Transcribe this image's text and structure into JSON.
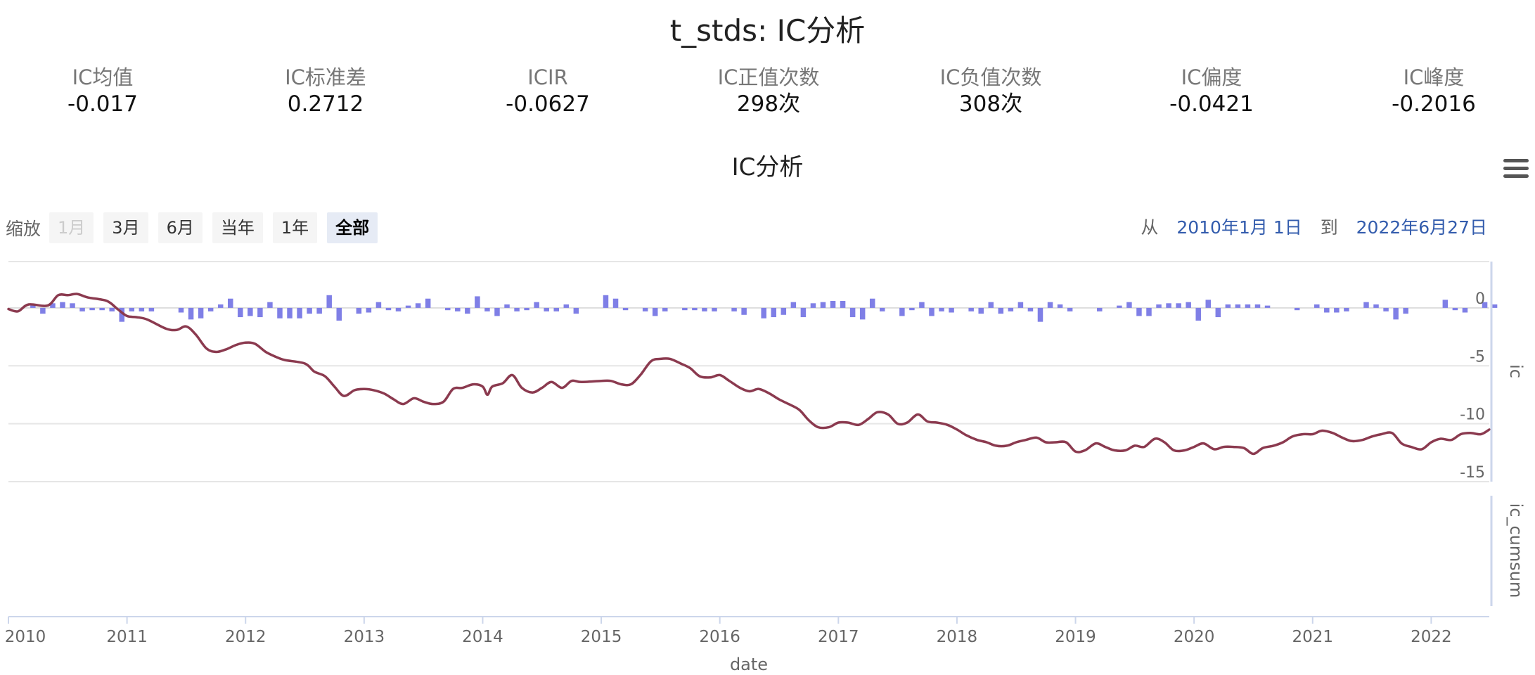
{
  "page_title": "t_stds: IC分析",
  "stats": [
    {
      "label": "IC均值",
      "value": "-0.017"
    },
    {
      "label": "IC标准差",
      "value": "0.2712"
    },
    {
      "label": "ICIR",
      "value": "-0.0627"
    },
    {
      "label": "IC正值次数",
      "value": "298次"
    },
    {
      "label": "IC负值次数",
      "value": "308次"
    },
    {
      "label": "IC偏度",
      "value": "-0.0421"
    },
    {
      "label": "IC峰度",
      "value": "-0.2016"
    }
  ],
  "range_selector": {
    "zoom_label": "缩放",
    "buttons": [
      {
        "label": "1月",
        "state": "disabled"
      },
      {
        "label": "3月",
        "state": "normal"
      },
      {
        "label": "6月",
        "state": "normal"
      },
      {
        "label": "当年",
        "state": "normal"
      },
      {
        "label": "1年",
        "state": "normal"
      },
      {
        "label": "全部",
        "state": "active"
      }
    ],
    "from_label": "从",
    "from_date": "2010年1月 1日",
    "to_label": "到",
    "to_date": "2022年6月27日"
  },
  "chart_data": {
    "type": "line",
    "title": "IC分析",
    "xlabel": "date",
    "x_ticks": [
      "2010",
      "2011",
      "2012",
      "2013",
      "2014",
      "2015",
      "2016",
      "2017",
      "2018",
      "2019",
      "2020",
      "2021",
      "2022"
    ],
    "xlim": [
      2010.0,
      2022.49
    ],
    "axes": [
      {
        "label": "ic",
        "ylim": [
          -15,
          4
        ],
        "ticks": [
          "0",
          "-5",
          "-10",
          "-15"
        ]
      },
      {
        "label": "ic_cumsum",
        "ticks": []
      }
    ],
    "grid": true,
    "colors": {
      "ic_bar": "#7f7fe6",
      "ic_cumsum_line": "#8b3a4f",
      "grid": "#e6e6e6",
      "axis": "#ccd6eb"
    },
    "series": [
      {
        "name": "ic",
        "type": "bar",
        "x_start": 2010.04,
        "x_step": 0.0833,
        "values": [
          0.0,
          0.0,
          0.3,
          -0.5,
          0.4,
          0.5,
          0.4,
          -0.3,
          -0.2,
          -0.2,
          -0.3,
          -1.2,
          -0.3,
          -0.3,
          -0.3,
          0.0,
          0.0,
          -0.4,
          -1.0,
          -0.9,
          -0.3,
          0.3,
          0.8,
          -0.8,
          -0.7,
          -0.8,
          0.5,
          -0.9,
          -0.9,
          -0.9,
          -0.5,
          -0.5,
          1.1,
          -1.1,
          0.0,
          -0.5,
          -0.4,
          0.5,
          -0.2,
          -0.3,
          0.2,
          0.4,
          0.8,
          0.0,
          -0.2,
          -0.3,
          -0.5,
          1.0,
          -0.3,
          -0.7,
          0.3,
          -0.3,
          -0.2,
          0.5,
          -0.3,
          -0.3,
          0.3,
          -0.5,
          0.0,
          0.0,
          1.1,
          0.8,
          -0.2,
          0.0,
          -0.3,
          -0.7,
          -0.3,
          0.0,
          -0.2,
          -0.2,
          -0.3,
          -0.3,
          0.0,
          -0.3,
          -0.6,
          0.0,
          -0.9,
          -0.8,
          -0.6,
          0.5,
          -0.8,
          0.4,
          0.5,
          0.6,
          0.6,
          -0.8,
          -1.0,
          0.8,
          -0.3,
          0.0,
          -0.7,
          -0.2,
          0.5,
          -0.7,
          -0.3,
          -0.4,
          0.0,
          -0.3,
          -0.5,
          0.5,
          -0.5,
          -0.3,
          0.5,
          -0.3,
          -1.2,
          0.5,
          0.3,
          -0.3,
          0.0,
          0.0,
          -0.3,
          0.0,
          0.2,
          0.5,
          -0.7,
          -0.7,
          0.3,
          0.4,
          0.4,
          0.5,
          -1.1,
          0.7,
          -0.8,
          0.3,
          0.3,
          0.3,
          0.3,
          0.2,
          0.0,
          0.0,
          -0.2,
          0.0,
          0.3,
          -0.4,
          -0.4,
          -0.3,
          0.0,
          0.5,
          0.3,
          -0.3,
          -1.0,
          -0.5,
          0.0,
          0.0,
          0.0,
          0.7,
          -0.2,
          -0.4,
          0.0,
          0.5,
          0.3
        ]
      },
      {
        "name": "ic_cumsum",
        "type": "line",
        "points": [
          [
            2010.0,
            -0.1
          ],
          [
            2010.08,
            -0.3
          ],
          [
            2010.17,
            0.3
          ],
          [
            2010.33,
            0.2
          ],
          [
            2010.42,
            1.1
          ],
          [
            2010.5,
            1.1
          ],
          [
            2010.58,
            1.2
          ],
          [
            2010.67,
            0.9
          ],
          [
            2010.83,
            0.6
          ],
          [
            2010.92,
            -0.1
          ],
          [
            2011.0,
            -0.7
          ],
          [
            2011.08,
            -0.8
          ],
          [
            2011.17,
            -1.0
          ],
          [
            2011.33,
            -1.8
          ],
          [
            2011.42,
            -1.9
          ],
          [
            2011.5,
            -1.6
          ],
          [
            2011.58,
            -2.3
          ],
          [
            2011.67,
            -3.5
          ],
          [
            2011.75,
            -3.8
          ],
          [
            2011.83,
            -3.6
          ],
          [
            2011.92,
            -3.2
          ],
          [
            2012.0,
            -3.0
          ],
          [
            2012.08,
            -3.1
          ],
          [
            2012.17,
            -3.8
          ],
          [
            2012.25,
            -4.2
          ],
          [
            2012.33,
            -4.5
          ],
          [
            2012.5,
            -4.8
          ],
          [
            2012.58,
            -5.5
          ],
          [
            2012.67,
            -5.9
          ],
          [
            2012.75,
            -6.8
          ],
          [
            2012.83,
            -7.6
          ],
          [
            2012.92,
            -7.1
          ],
          [
            2013.0,
            -7.0
          ],
          [
            2013.08,
            -7.1
          ],
          [
            2013.17,
            -7.4
          ],
          [
            2013.25,
            -7.9
          ],
          [
            2013.33,
            -8.3
          ],
          [
            2013.42,
            -7.8
          ],
          [
            2013.5,
            -8.1
          ],
          [
            2013.58,
            -8.3
          ],
          [
            2013.67,
            -8.1
          ],
          [
            2013.75,
            -7.0
          ],
          [
            2013.83,
            -6.9
          ],
          [
            2013.92,
            -6.6
          ],
          [
            2014.0,
            -6.8
          ],
          [
            2014.04,
            -7.5
          ],
          [
            2014.08,
            -6.8
          ],
          [
            2014.17,
            -6.5
          ],
          [
            2014.25,
            -5.8
          ],
          [
            2014.33,
            -6.9
          ],
          [
            2014.42,
            -7.3
          ],
          [
            2014.5,
            -6.9
          ],
          [
            2014.58,
            -6.4
          ],
          [
            2014.67,
            -6.9
          ],
          [
            2014.75,
            -6.3
          ],
          [
            2014.83,
            -6.4
          ],
          [
            2015.0,
            -6.3
          ],
          [
            2015.08,
            -6.3
          ],
          [
            2015.17,
            -6.6
          ],
          [
            2015.25,
            -6.6
          ],
          [
            2015.33,
            -5.8
          ],
          [
            2015.42,
            -4.6
          ],
          [
            2015.5,
            -4.4
          ],
          [
            2015.58,
            -4.4
          ],
          [
            2015.67,
            -4.8
          ],
          [
            2015.75,
            -5.2
          ],
          [
            2015.83,
            -5.9
          ],
          [
            2015.92,
            -6.0
          ],
          [
            2016.0,
            -5.8
          ],
          [
            2016.08,
            -6.3
          ],
          [
            2016.17,
            -6.9
          ],
          [
            2016.25,
            -7.2
          ],
          [
            2016.33,
            -7.0
          ],
          [
            2016.42,
            -7.4
          ],
          [
            2016.5,
            -7.9
          ],
          [
            2016.58,
            -8.3
          ],
          [
            2016.67,
            -8.8
          ],
          [
            2016.75,
            -9.7
          ],
          [
            2016.83,
            -10.3
          ],
          [
            2016.92,
            -10.3
          ],
          [
            2017.0,
            -9.9
          ],
          [
            2017.08,
            -9.9
          ],
          [
            2017.17,
            -10.1
          ],
          [
            2017.25,
            -9.6
          ],
          [
            2017.33,
            -9.0
          ],
          [
            2017.42,
            -9.2
          ],
          [
            2017.5,
            -10.0
          ],
          [
            2017.58,
            -9.9
          ],
          [
            2017.67,
            -9.2
          ],
          [
            2017.75,
            -9.8
          ],
          [
            2017.83,
            -9.9
          ],
          [
            2017.92,
            -10.1
          ],
          [
            2018.0,
            -10.5
          ],
          [
            2018.08,
            -11.0
          ],
          [
            2018.17,
            -11.4
          ],
          [
            2018.25,
            -11.6
          ],
          [
            2018.33,
            -11.9
          ],
          [
            2018.42,
            -11.9
          ],
          [
            2018.5,
            -11.6
          ],
          [
            2018.58,
            -11.4
          ],
          [
            2018.67,
            -11.2
          ],
          [
            2018.75,
            -11.6
          ],
          [
            2018.83,
            -11.6
          ],
          [
            2018.92,
            -11.6
          ],
          [
            2019.0,
            -12.4
          ],
          [
            2019.08,
            -12.3
          ],
          [
            2019.17,
            -11.7
          ],
          [
            2019.25,
            -12.0
          ],
          [
            2019.33,
            -12.3
          ],
          [
            2019.42,
            -12.3
          ],
          [
            2019.5,
            -11.9
          ],
          [
            2019.58,
            -12.0
          ],
          [
            2019.67,
            -11.3
          ],
          [
            2019.75,
            -11.6
          ],
          [
            2019.83,
            -12.3
          ],
          [
            2019.92,
            -12.3
          ],
          [
            2020.0,
            -12.0
          ],
          [
            2020.08,
            -11.7
          ],
          [
            2020.17,
            -12.2
          ],
          [
            2020.25,
            -12.0
          ],
          [
            2020.33,
            -12.0
          ],
          [
            2020.42,
            -12.1
          ],
          [
            2020.5,
            -12.6
          ],
          [
            2020.58,
            -12.1
          ],
          [
            2020.67,
            -11.9
          ],
          [
            2020.75,
            -11.6
          ],
          [
            2020.83,
            -11.1
          ],
          [
            2020.92,
            -10.9
          ],
          [
            2021.0,
            -10.9
          ],
          [
            2021.08,
            -10.6
          ],
          [
            2021.17,
            -10.8
          ],
          [
            2021.25,
            -11.2
          ],
          [
            2021.33,
            -11.5
          ],
          [
            2021.42,
            -11.4
          ],
          [
            2021.5,
            -11.1
          ],
          [
            2021.58,
            -10.9
          ],
          [
            2021.67,
            -10.8
          ],
          [
            2021.75,
            -11.7
          ],
          [
            2021.83,
            -12.0
          ],
          [
            2021.92,
            -12.2
          ],
          [
            2022.0,
            -11.6
          ],
          [
            2022.08,
            -11.3
          ],
          [
            2022.17,
            -11.4
          ],
          [
            2022.25,
            -10.9
          ],
          [
            2022.33,
            -10.8
          ],
          [
            2022.42,
            -10.9
          ],
          [
            2022.49,
            -10.5
          ]
        ]
      }
    ]
  }
}
